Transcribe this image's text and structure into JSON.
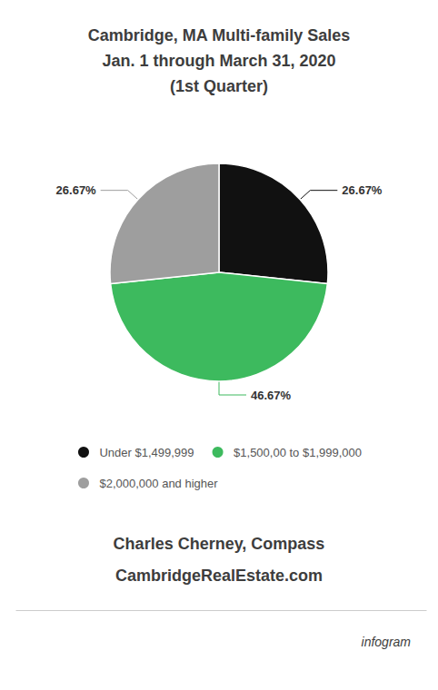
{
  "chart_data": {
    "type": "pie",
    "title": "Cambridge, MA Multi-family Sales\nJan. 1 through March 31, 2020\n(1st Quarter)",
    "categories": [
      "Under $1,499,999",
      "$1,500,00 to $1,999,000",
      "$2,000,000 and higher"
    ],
    "values": [
      26.67,
      46.67,
      26.67
    ],
    "value_labels": [
      "26.67%",
      "46.67%",
      "26.67%"
    ],
    "data_labels": true,
    "colors": [
      "#111111",
      "#3dba5e",
      "#9e9e9e"
    ],
    "legend": "bottom",
    "annotations": [
      "Charles Cherney, Compass",
      "CambridgeRealEstate.com",
      "infogram"
    ]
  }
}
